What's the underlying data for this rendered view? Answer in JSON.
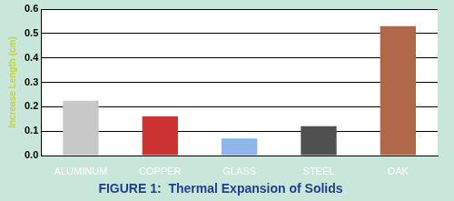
{
  "chart_data": {
    "type": "bar",
    "title": "FIGURE 1:  Thermal Expansion of Solids",
    "ylabel": "Increase Length (cm)",
    "categories": [
      "ALUMINUM",
      "COPPER",
      "GLASS",
      "STEEL",
      "OAK"
    ],
    "values": [
      0.225,
      0.16,
      0.07,
      0.12,
      0.53
    ],
    "colors": [
      "#c8c8c8",
      "#cc3333",
      "#8fb6ea",
      "#505050",
      "#b0684a"
    ],
    "ylim": [
      0,
      0.6
    ],
    "yticks": [
      {
        "value": 0,
        "label": "0.0"
      },
      0.1,
      0.2,
      0.3,
      0.4,
      0.5,
      0.6
    ],
    "grid": true
  }
}
